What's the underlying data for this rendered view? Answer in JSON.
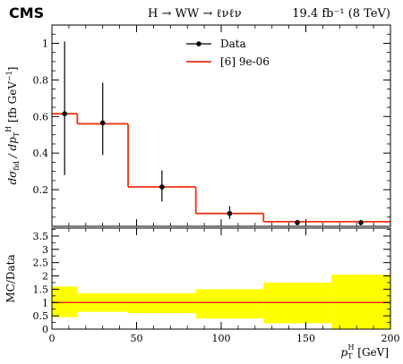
{
  "header": {
    "experiment": "CMS",
    "process": "H → WW → ℓνℓν",
    "lumi": "19.4 fb⁻¹ (8 TeV)"
  },
  "colors": {
    "prediction": "#ee3311",
    "band": "#ffff00",
    "data": "#000000"
  },
  "chart_data": [
    {
      "type": "line",
      "title": "",
      "xlabel": "",
      "ylabel": "dσfid / dpT^H [fb GeV⁻¹]",
      "ylabel_parts": {
        "main": "dσ",
        "sub1": "fid",
        "mid": " / dp",
        "sub2": "T",
        "sup2": "H",
        "unit": " [fb GeV",
        "unit_sup": "−1",
        "close": "]"
      },
      "xlim": [
        0,
        200
      ],
      "ylim": [
        0,
        1.1
      ],
      "yticks": [
        0.2,
        0.4,
        0.6,
        0.8,
        1
      ],
      "ytick_labels": [
        "0.2",
        "0.4",
        "0.6",
        "0.8",
        "1"
      ],
      "legend": {
        "position": "top-center",
        "entries": [
          "Data",
          "[6] 9e-06"
        ]
      },
      "bin_edges": [
        0,
        15,
        45,
        85,
        125,
        165,
        200
      ],
      "series": [
        {
          "name": "[6] 9e-06",
          "kind": "step",
          "values": [
            0.615,
            0.56,
            0.215,
            0.07,
            0.025,
            0.025
          ]
        },
        {
          "name": "Data",
          "kind": "points",
          "x": [
            7.5,
            30,
            65,
            105,
            145,
            182.5
          ],
          "y": [
            0.615,
            0.565,
            0.215,
            0.07,
            0.02,
            0.02
          ],
          "y_err_low": [
            0.335,
            0.175,
            0.08,
            0.03,
            0.015,
            0.015
          ],
          "y_err_high": [
            0.395,
            0.22,
            0.09,
            0.04,
            0.015,
            0.015
          ]
        }
      ]
    },
    {
      "type": "area",
      "title": "",
      "xlabel": "p_T^H [GeV]",
      "xlabel_parts": {
        "main": "p",
        "sub": "T",
        "sup": "H",
        "unit": " [GeV]"
      },
      "ylabel": "MC/Data",
      "xlim": [
        0,
        200
      ],
      "ylim": [
        0,
        3.8
      ],
      "xticks": [
        0,
        50,
        100,
        150,
        200
      ],
      "xtick_labels": [
        "0",
        "50",
        "100",
        "150",
        "200"
      ],
      "yticks": [
        0,
        0.5,
        1,
        1.5,
        2,
        2.5,
        3,
        3.5
      ],
      "ytick_labels": [
        "0",
        "0.5",
        "1",
        "1.5",
        "2",
        "2.5",
        "3",
        "3.5"
      ],
      "bin_edges": [
        0,
        15,
        45,
        85,
        125,
        165,
        200
      ],
      "series": [
        {
          "name": "band",
          "kind": "band",
          "low": [
            0.45,
            0.65,
            0.6,
            0.4,
            0.22,
            0.0
          ],
          "high": [
            1.6,
            1.35,
            1.35,
            1.5,
            1.75,
            2.05
          ]
        },
        {
          "name": "ratio",
          "kind": "step",
          "values": [
            1,
            1,
            1,
            1,
            1,
            1
          ]
        }
      ]
    }
  ]
}
